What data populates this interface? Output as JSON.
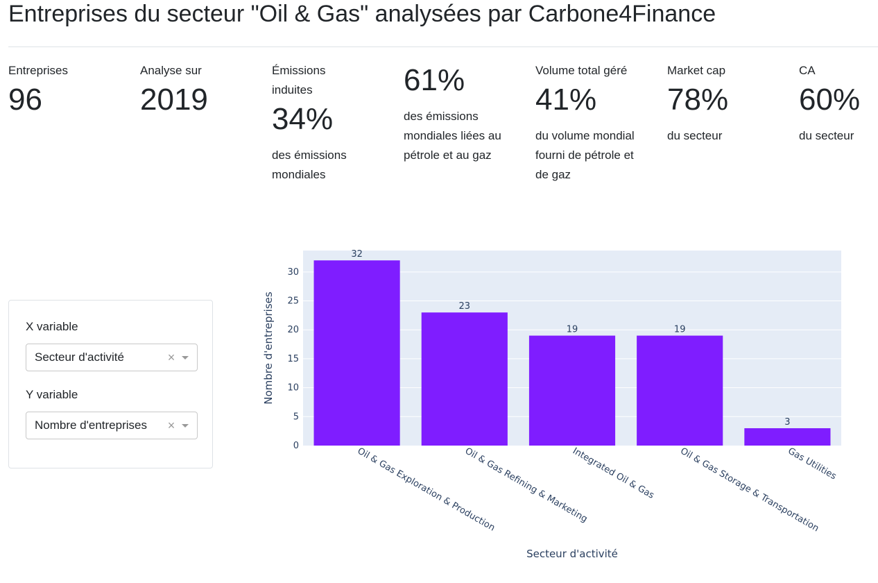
{
  "header": {
    "title": "Entreprises du secteur \"Oil & Gas\" analysées par Carbone4Finance"
  },
  "stats": [
    {
      "label": "Entreprises",
      "value": "96",
      "desc": ""
    },
    {
      "label": "Analyse sur",
      "value": "2019",
      "desc": ""
    },
    {
      "label": "Émissions induites",
      "value": "34%",
      "desc": "des émissions mondiales"
    },
    {
      "label": "",
      "value": "61%",
      "desc": "des émissions mondiales liées au pétrole et au gaz"
    },
    {
      "label": "Volume total géré",
      "value": "41%",
      "desc": "du volume mondial fourni de pétrole et de gaz"
    },
    {
      "label": "Market cap",
      "value": "78%",
      "desc": "du secteur"
    },
    {
      "label": "CA",
      "value": "60%",
      "desc": "du secteur"
    }
  ],
  "controls": {
    "x_label": "X variable",
    "x_value": "Secteur d'activité",
    "y_label": "Y variable",
    "y_value": "Nombre d'entreprises",
    "clear_symbol": "×"
  },
  "colors": {
    "bar": "#7F1DFF",
    "plot_bg": "#E5ECF6",
    "axis_text": "#2A3F5F"
  },
  "chart_data": {
    "type": "bar",
    "categories": [
      "Oil & Gas Exploration & Production",
      "Oil & Gas Refining & Marketing",
      "Integrated Oil & Gas",
      "Oil & Gas Storage & Transportation",
      "Gas Utilities"
    ],
    "values": [
      32,
      23,
      19,
      19,
      3
    ],
    "xlabel": "Secteur d'activité",
    "ylabel": "Nombre d'entreprises",
    "yticks": [
      0,
      5,
      10,
      15,
      20,
      25,
      30
    ],
    "ylim": [
      0,
      33.7
    ],
    "grid": true,
    "legend": "none"
  }
}
